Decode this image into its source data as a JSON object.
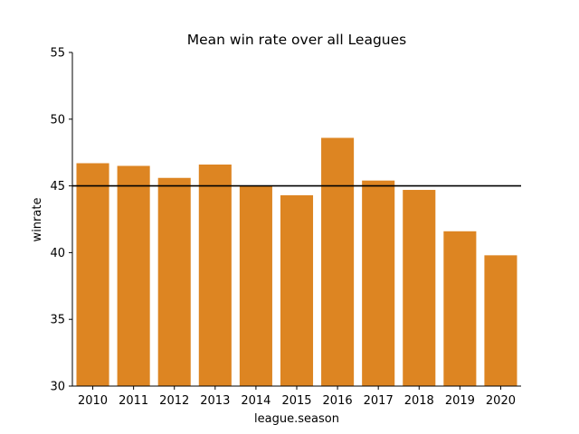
{
  "chart_data": {
    "type": "bar",
    "title": "Mean win rate over all Leagues",
    "xlabel": "league.season",
    "ylabel": "winrate",
    "categories": [
      "2010",
      "2011",
      "2012",
      "2013",
      "2014",
      "2015",
      "2016",
      "2017",
      "2018",
      "2019",
      "2020"
    ],
    "values": [
      46.7,
      46.5,
      45.6,
      46.6,
      45.0,
      44.3,
      48.6,
      45.4,
      44.7,
      41.6,
      39.8
    ],
    "ylim": [
      30,
      55
    ],
    "yticks": [
      "30",
      "35",
      "40",
      "45",
      "50",
      "55"
    ],
    "reference_line": {
      "y": 45,
      "color": "#000000"
    },
    "bar_color": "#dd8522",
    "grid": false
  }
}
